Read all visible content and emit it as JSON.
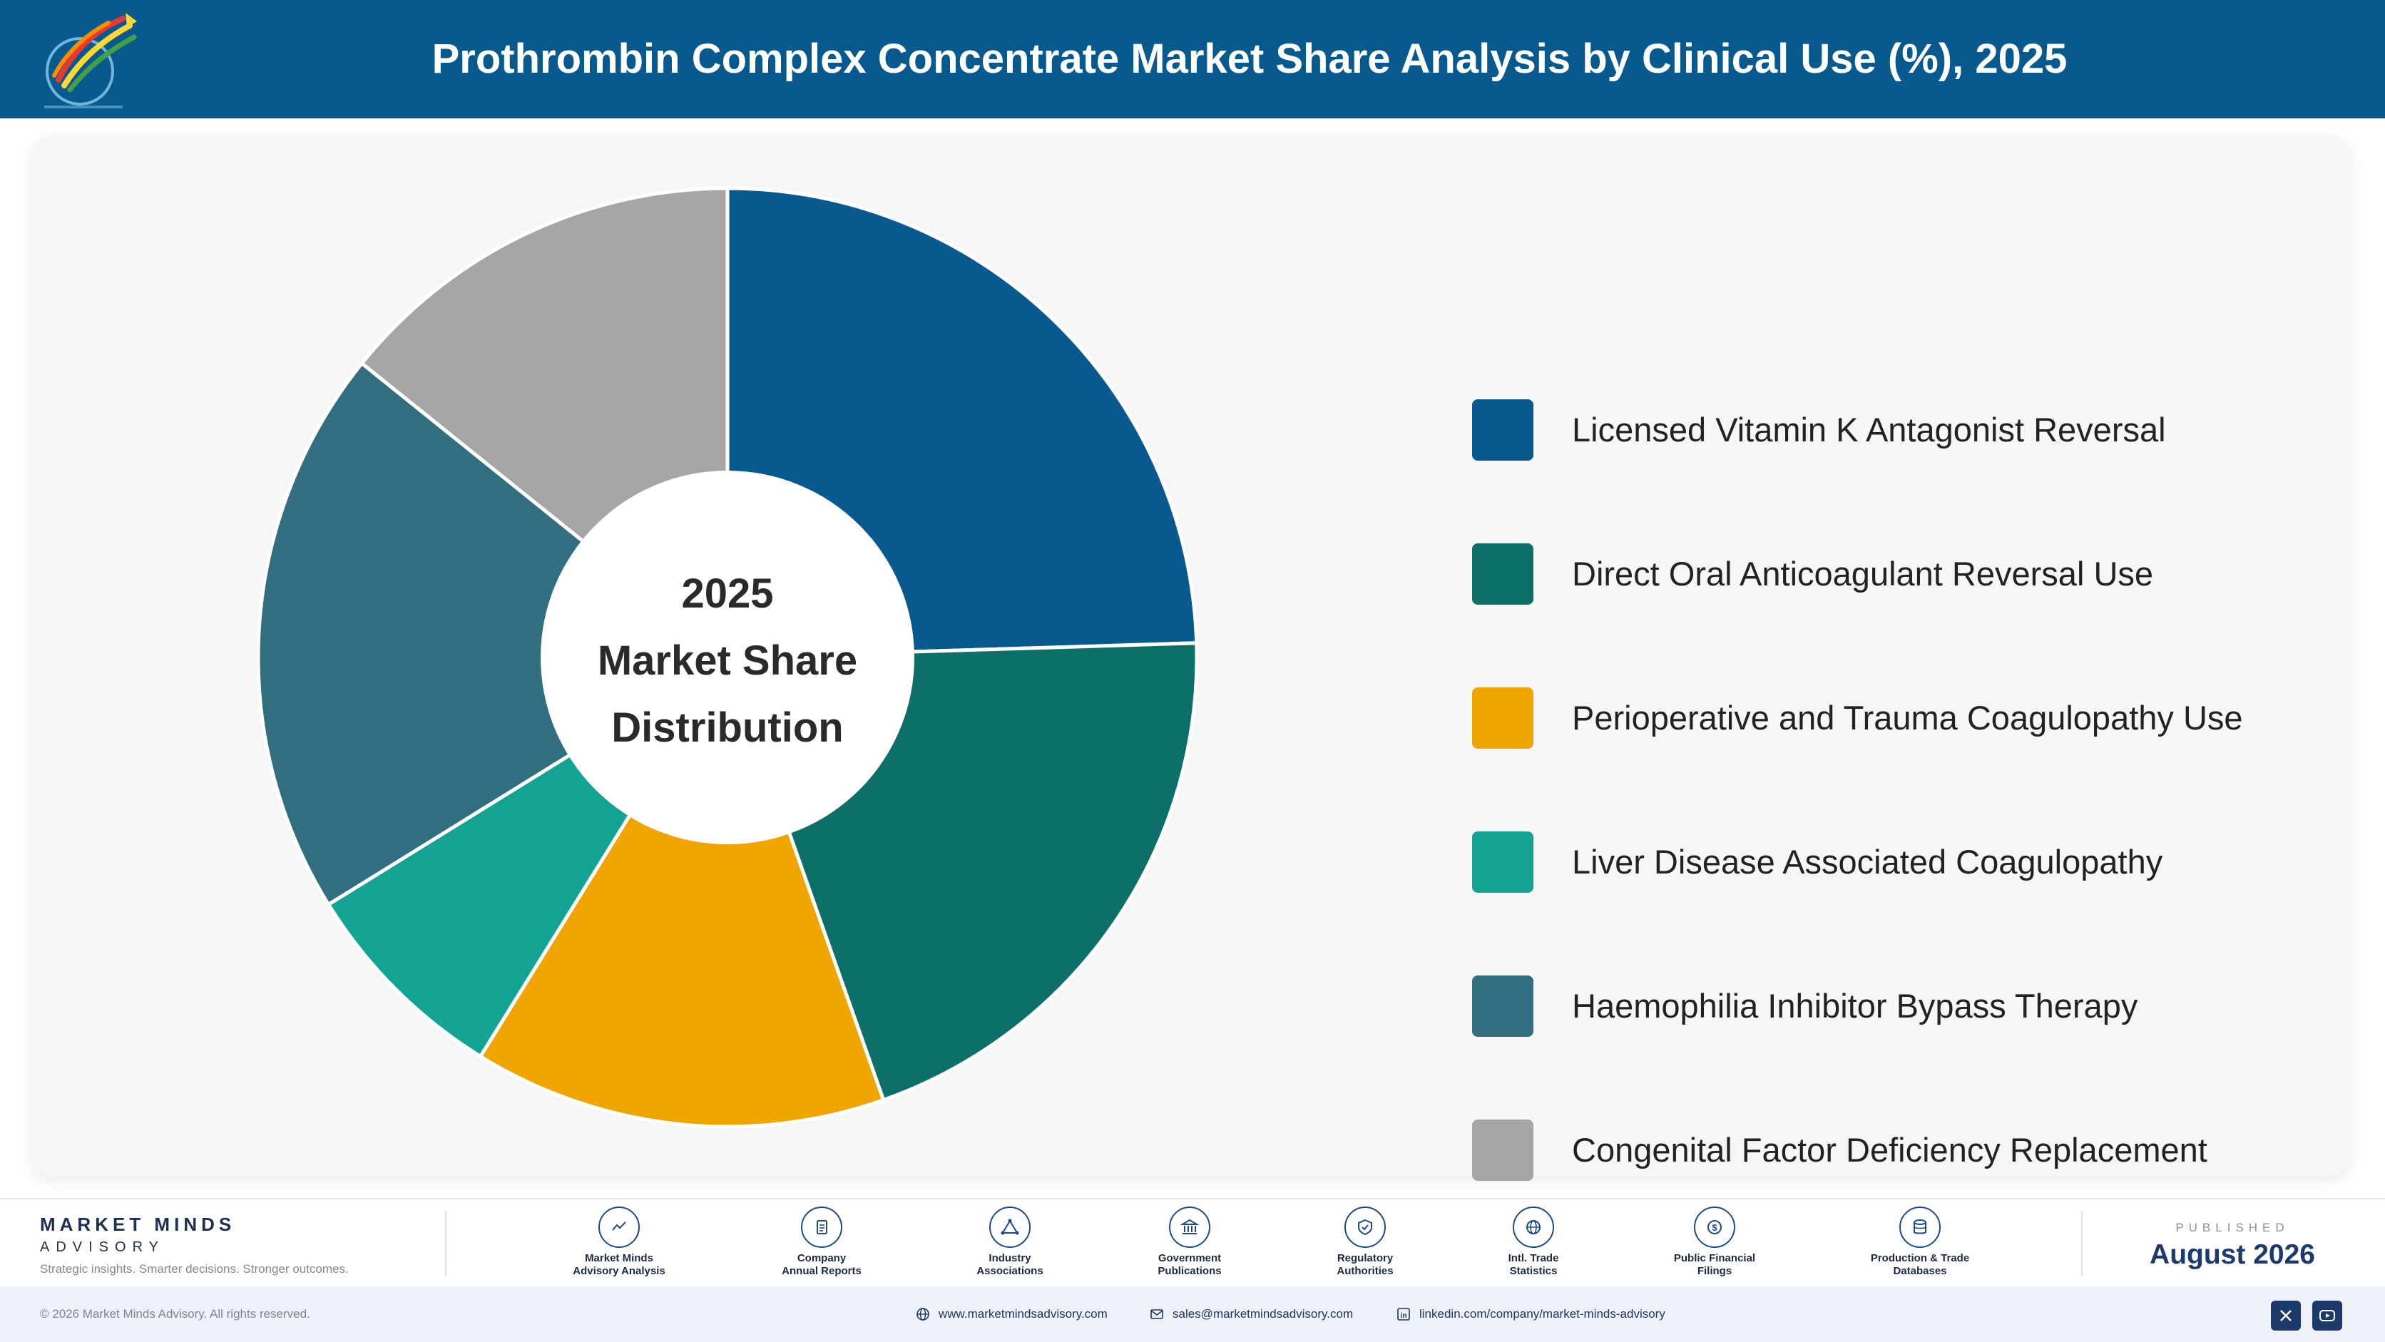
{
  "header": {
    "title": "Prothrombin Complex Concentrate Market Share Analysis by Clinical Use (%), 2025"
  },
  "chart_data": {
    "type": "pie",
    "style": "donut",
    "center_label": [
      "2025",
      "Market Share",
      "Distribution"
    ],
    "legend_position": "right",
    "categories": [
      "Licensed Vitamin K Antagonist Reversal",
      "Direct Oral Anticoagulant Reversal Use",
      "Perioperative and Trauma Coagulopathy Use",
      "Liver Disease Associated Coagulopathy",
      "Haemophilia Inhibitor Bypass Therapy",
      "Congenital Factor Deficiency Replacement"
    ],
    "values": [
      25,
      20.5,
      14.5,
      7.5,
      20,
      14.5
    ],
    "colors": [
      "#07598e",
      "#0d7068",
      "#f0a500",
      "#13a393",
      "#316e80",
      "#a6a6a6"
    ]
  },
  "footer": {
    "brand_name": "MARKET MINDS",
    "brand_sub": "ADVISORY",
    "brand_tagline": "Strategic insights. Smarter decisions. Stronger outcomes.",
    "sources": [
      {
        "line1": "Market Minds",
        "line2": "Advisory Analysis",
        "icon": "trend-chart-icon"
      },
      {
        "line1": "Company",
        "line2": "Annual Reports",
        "icon": "document-icon"
      },
      {
        "line1": "Industry",
        "line2": "Associations",
        "icon": "network-icon"
      },
      {
        "line1": "Government",
        "line2": "Publications",
        "icon": "government-building-icon"
      },
      {
        "line1": "Regulatory",
        "line2": "Authorities",
        "icon": "shield-check-icon"
      },
      {
        "line1": "Intl. Trade",
        "line2": "Statistics",
        "icon": "globe-icon"
      },
      {
        "line1": "Public Financial",
        "line2": "Filings",
        "icon": "dollar-coin-icon"
      },
      {
        "line1": "Production & Trade",
        "line2": "Databases",
        "icon": "database-icon"
      }
    ],
    "published_label": "PUBLISHED",
    "published_date": "August 2026",
    "copyright": "© 2026 Market Minds Advisory. All rights reserved.",
    "website": "www.marketmindsadvisory.com",
    "email": "sales@marketmindsadvisory.com",
    "linkedin": "linkedin.com/company/market-minds-advisory",
    "social": [
      "x-icon",
      "youtube-icon"
    ]
  }
}
